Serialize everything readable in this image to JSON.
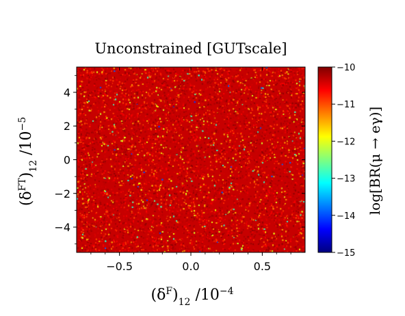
{
  "chart_data": {
    "type": "heatmap",
    "title": "Unconstrained [GUTscale]",
    "xlabel": "(δ^F)_12 /10^−4",
    "xlabel_parts": {
      "base": "(δ",
      "sup1": "F",
      "mid": ")",
      "sub": "12",
      "unit": " /10",
      "sup2": "−4"
    },
    "ylabel": "(δ^FT)_12 /10^−5",
    "ylabel_parts": {
      "base": "(δ",
      "sup1": "FT",
      "mid": ")",
      "sub": "12",
      "unit": " /10",
      "sup2": "−5"
    },
    "colorbar_label": "log[BR(μ → eγ)]",
    "x_ticks": [
      "−0.5",
      "0.0",
      "0.5"
    ],
    "x_tick_values": [
      -0.5,
      0.0,
      0.5
    ],
    "y_ticks": [
      "4",
      "2",
      "0",
      "−2",
      "−4"
    ],
    "y_tick_values": [
      4,
      2,
      0,
      -2,
      -4
    ],
    "colorbar_ticks": [
      "−10",
      "−11",
      "−12",
      "−13",
      "−14",
      "−15"
    ],
    "colorbar_tick_values": [
      -10,
      -11,
      -12,
      -13,
      -14,
      -15
    ],
    "xlim": [
      -0.8,
      0.8
    ],
    "ylim": [
      -5.5,
      5.5
    ],
    "clim": [
      -15,
      -10
    ],
    "colormap": "jet",
    "colormap_stops": [
      "#00007f",
      "#0000ff",
      "#007fff",
      "#00ffff",
      "#7fff7f",
      "#ffff00",
      "#ff7f00",
      "#ff0000",
      "#7f0000"
    ],
    "value_distribution": {
      "description": "dense random scatter; values mostly near -10.3 (dark red/red), with sparse orange/yellow and rare cyan/blue points",
      "weights": {
        "-10.2": 0.42,
        "-10.5": 0.33,
        "-10.9": 0.14,
        "-11.4": 0.06,
        "-12.0": 0.03,
        "-12.8": 0.015,
        "-14.0": 0.005
      }
    }
  }
}
